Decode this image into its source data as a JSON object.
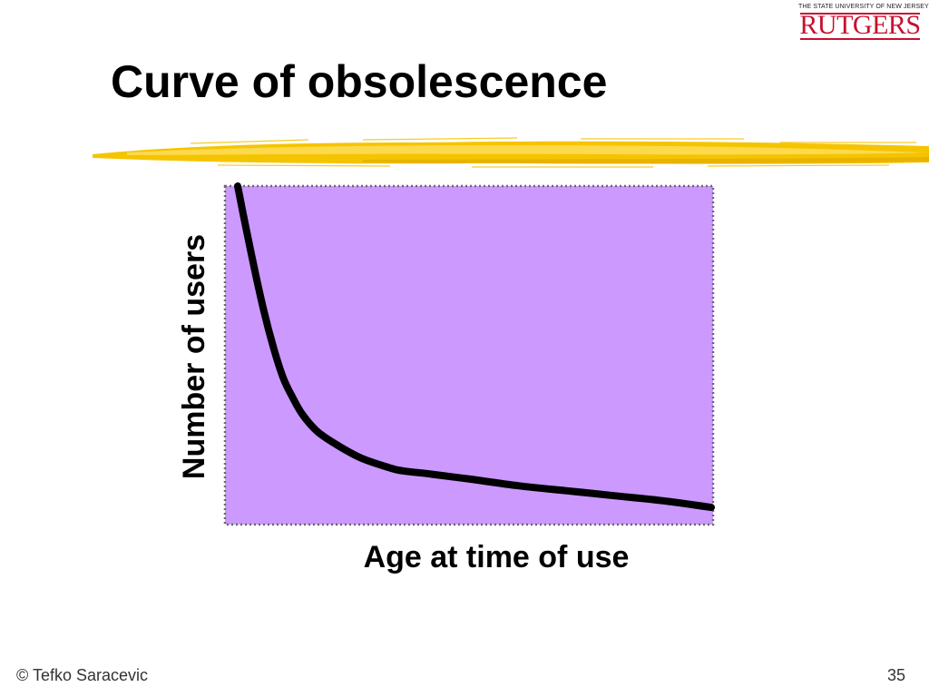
{
  "slide": {
    "title": "Curve of obsolescence",
    "footer_left": "© Tefko Saracevic",
    "page_number": "35"
  },
  "logo": {
    "top_text": "THE STATE UNIVERSITY OF NEW JERSEY",
    "name": "RUTGERS",
    "color": "#c8102e"
  },
  "colors": {
    "accent_brush": "#f5c400",
    "plot_fill": "#cc99ff",
    "curve": "#000000"
  },
  "chart_data": {
    "type": "line",
    "xlabel": "Age at time of use",
    "ylabel": "Number of users",
    "xlim": [
      0,
      100
    ],
    "ylim": [
      0,
      100
    ],
    "grid": false,
    "legend": "none",
    "series": [
      {
        "x": [
          1.5,
          3,
          5,
          7,
          9,
          11,
          13,
          15,
          18,
          22,
          27,
          33,
          36,
          42,
          50,
          60,
          70,
          80,
          90,
          100
        ],
        "y": [
          100,
          89,
          75,
          62,
          51,
          42,
          36,
          31,
          26,
          22,
          18,
          15,
          14,
          13,
          11.5,
          9.5,
          8,
          6.5,
          5,
          3
        ]
      }
    ]
  }
}
